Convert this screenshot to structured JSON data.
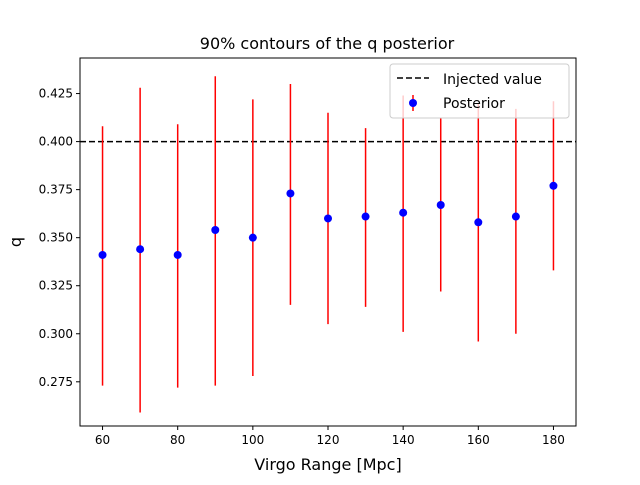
{
  "chart_data": {
    "type": "scatter",
    "title": "90% contours of the q  posterior",
    "xlabel": "Virgo Range [Mpc]",
    "ylabel": "q",
    "xlim": [
      54,
      186
    ],
    "ylim": [
      0.252,
      0.4435
    ],
    "x_ticks": [
      60,
      80,
      100,
      120,
      140,
      160,
      180
    ],
    "y_ticks": [
      0.275,
      0.3,
      0.325,
      0.35,
      0.375,
      0.4,
      0.425
    ],
    "x_tick_labels": [
      "60",
      "80",
      "100",
      "120",
      "140",
      "160",
      "180"
    ],
    "y_tick_labels": [
      "0.275",
      "0.300",
      "0.325",
      "0.350",
      "0.375",
      "0.400",
      "0.425"
    ],
    "grid": false,
    "legend_position": "top-right",
    "injected_value": 0.4,
    "series": [
      {
        "name": "Posterior",
        "marker_color": "#0000ff",
        "errorbar_color": "#ff0000",
        "x": [
          60,
          70,
          80,
          90,
          100,
          110,
          120,
          130,
          140,
          150,
          160,
          170,
          180
        ],
        "y": [
          0.341,
          0.344,
          0.341,
          0.354,
          0.35,
          0.373,
          0.36,
          0.361,
          0.363,
          0.367,
          0.358,
          0.361,
          0.377
        ],
        "lower": [
          0.273,
          0.259,
          0.272,
          0.273,
          0.278,
          0.315,
          0.305,
          0.314,
          0.301,
          0.322,
          0.296,
          0.3,
          0.333
        ],
        "upper": [
          0.408,
          0.428,
          0.409,
          0.434,
          0.422,
          0.43,
          0.415,
          0.407,
          0.424,
          0.412,
          0.42,
          0.417,
          0.421
        ]
      }
    ],
    "legend": [
      {
        "label": "Injected value",
        "style": "dashed-line",
        "color": "#000000"
      },
      {
        "label": "Posterior",
        "style": "marker",
        "color": "#0000ff"
      }
    ]
  }
}
